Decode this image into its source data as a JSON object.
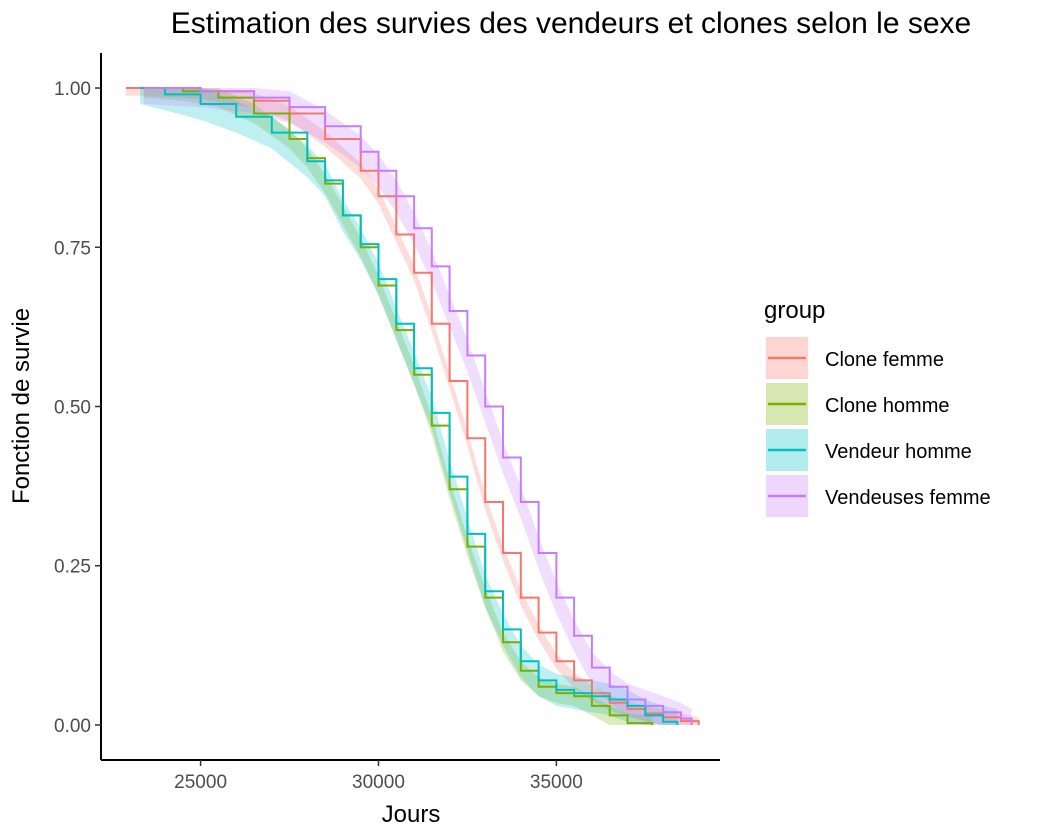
{
  "chart_data": {
    "type": "line",
    "title": "Estimation des survies des vendeurs et clones selon le sexe",
    "xlabel": "Jours",
    "ylabel": "Fonction de survie",
    "xlim": [
      22200,
      39600
    ],
    "ylim": [
      -0.055,
      1.055
    ],
    "x_ticks": [
      25000,
      30000,
      35000
    ],
    "x_tick_labels": [
      "25000",
      "30000",
      "35000"
    ],
    "y_ticks": [
      0,
      0.25,
      0.5,
      0.75,
      1
    ],
    "y_tick_labels": [
      "0.00",
      "0.25",
      "0.50",
      "0.75",
      "1.00"
    ],
    "grid": false,
    "legend": {
      "title": "group",
      "placement": "right"
    },
    "series": [
      {
        "name": "Clone femme",
        "color": "#F8766D",
        "band_halfwidth": 0.012,
        "points": [
          [
            22900,
            1.0
          ],
          [
            23500,
            1.0
          ],
          [
            25000,
            0.995
          ],
          [
            26500,
            0.98
          ],
          [
            27500,
            0.96
          ],
          [
            28500,
            0.92
          ],
          [
            29500,
            0.87
          ],
          [
            30000,
            0.83
          ],
          [
            30500,
            0.77
          ],
          [
            31000,
            0.71
          ],
          [
            31500,
            0.63
          ],
          [
            32000,
            0.54
          ],
          [
            32500,
            0.45
          ],
          [
            33000,
            0.35
          ],
          [
            33500,
            0.27
          ],
          [
            34000,
            0.2
          ],
          [
            34500,
            0.145
          ],
          [
            35000,
            0.1
          ],
          [
            35500,
            0.07
          ],
          [
            36000,
            0.05
          ],
          [
            36500,
            0.035
          ],
          [
            37000,
            0.025
          ],
          [
            37500,
            0.018
          ],
          [
            38000,
            0.012
          ],
          [
            38500,
            0.006
          ],
          [
            39000,
            0.0
          ]
        ]
      },
      {
        "name": "Clone homme",
        "color": "#7CAE00",
        "band_halfwidth": 0.015,
        "points": [
          [
            23400,
            1.0
          ],
          [
            24500,
            0.995
          ],
          [
            25500,
            0.985
          ],
          [
            26500,
            0.96
          ],
          [
            27500,
            0.92
          ],
          [
            28000,
            0.89
          ],
          [
            28500,
            0.85
          ],
          [
            29000,
            0.8
          ],
          [
            29500,
            0.75
          ],
          [
            30000,
            0.69
          ],
          [
            30500,
            0.62
          ],
          [
            31000,
            0.55
          ],
          [
            31500,
            0.47
          ],
          [
            32000,
            0.37
          ],
          [
            32500,
            0.28
          ],
          [
            33000,
            0.2
          ],
          [
            33500,
            0.13
          ],
          [
            34000,
            0.085
          ],
          [
            34500,
            0.06
          ],
          [
            35000,
            0.05
          ],
          [
            35500,
            0.045
          ],
          [
            36000,
            0.03
          ],
          [
            36500,
            0.015
          ],
          [
            37000,
            0.003
          ],
          [
            37700,
            0.0
          ]
        ]
      },
      {
        "name": "Vendeur homme",
        "color": "#00BFC4",
        "band_halfwidth": 0.025,
        "points": [
          [
            23300,
            1.0
          ],
          [
            24000,
            0.99
          ],
          [
            25000,
            0.975
          ],
          [
            26000,
            0.955
          ],
          [
            27000,
            0.93
          ],
          [
            28000,
            0.885
          ],
          [
            28500,
            0.855
          ],
          [
            29000,
            0.8
          ],
          [
            29500,
            0.755
          ],
          [
            30000,
            0.7
          ],
          [
            30500,
            0.63
          ],
          [
            31000,
            0.56
          ],
          [
            31500,
            0.49
          ],
          [
            32000,
            0.39
          ],
          [
            32500,
            0.3
          ],
          [
            33000,
            0.21
          ],
          [
            33500,
            0.15
          ],
          [
            34000,
            0.1
          ],
          [
            34500,
            0.07
          ],
          [
            35000,
            0.055
          ],
          [
            35500,
            0.05
          ],
          [
            36000,
            0.045
          ],
          [
            36500,
            0.04
          ],
          [
            37000,
            0.03
          ],
          [
            37500,
            0.015
          ],
          [
            38000,
            0.005
          ],
          [
            38400,
            0.0
          ]
        ]
      },
      {
        "name": "Vendeuses femme",
        "color": "#C77CFF",
        "band_halfwidth": 0.025,
        "points": [
          [
            23400,
            1.0
          ],
          [
            25000,
            0.995
          ],
          [
            26500,
            0.985
          ],
          [
            27500,
            0.97
          ],
          [
            28500,
            0.94
          ],
          [
            29500,
            0.9
          ],
          [
            30000,
            0.87
          ],
          [
            30500,
            0.83
          ],
          [
            31000,
            0.78
          ],
          [
            31500,
            0.72
          ],
          [
            32000,
            0.65
          ],
          [
            32500,
            0.58
          ],
          [
            33000,
            0.5
          ],
          [
            33500,
            0.42
          ],
          [
            34000,
            0.35
          ],
          [
            34500,
            0.27
          ],
          [
            35000,
            0.2
          ],
          [
            35500,
            0.14
          ],
          [
            36000,
            0.09
          ],
          [
            36500,
            0.06
          ],
          [
            37000,
            0.04
          ],
          [
            37500,
            0.03
          ],
          [
            38000,
            0.02
          ],
          [
            38500,
            0.01
          ],
          [
            38800,
            0.0
          ]
        ]
      }
    ]
  }
}
